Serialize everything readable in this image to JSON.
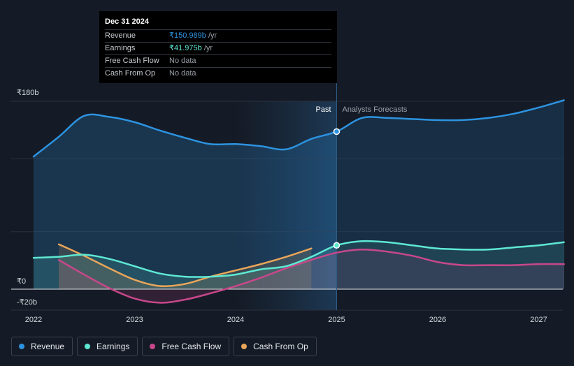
{
  "tooltip": {
    "date": "Dec 31 2024",
    "rows": [
      {
        "label": "Revenue",
        "value": "₹150.989b",
        "unit": " /yr",
        "color": "#2d93e0"
      },
      {
        "label": "Earnings",
        "value": "₹41.975b",
        "unit": " /yr",
        "color": "#5ee8d3"
      },
      {
        "label": "Free Cash Flow",
        "value": "No data",
        "unit": "",
        "color": ""
      },
      {
        "label": "Cash From Op",
        "value": "No data",
        "unit": "",
        "color": ""
      }
    ]
  },
  "labels": {
    "past": "Past",
    "forecast": "Analysts Forecasts"
  },
  "legend": [
    {
      "label": "Revenue",
      "color": "#2d93e0"
    },
    {
      "label": "Earnings",
      "color": "#5ee8d3"
    },
    {
      "label": "Free Cash Flow",
      "color": "#c8478a"
    },
    {
      "label": "Cash From Op",
      "color": "#e8a55a"
    }
  ],
  "chart_data": {
    "type": "line",
    "title": "",
    "xlabel": "",
    "ylabel": "",
    "x_ticks": [
      "2022",
      "2023",
      "2024",
      "2025",
      "2026",
      "2027"
    ],
    "y_ticks": [
      "₹180b",
      "₹0",
      "-₹20b"
    ],
    "ylim": [
      -20,
      180
    ],
    "xlim": [
      2022,
      2027.25
    ],
    "divider_x": 2025.0,
    "series": [
      {
        "name": "Revenue",
        "color": "#2d93e0",
        "x": [
          2022.0,
          2022.25,
          2022.5,
          2022.75,
          2023.0,
          2023.25,
          2023.5,
          2023.75,
          2024.0,
          2024.25,
          2024.5,
          2024.75,
          2025.0,
          2025.25,
          2025.5,
          2025.75,
          2026.0,
          2026.25,
          2026.5,
          2026.75,
          2027.0,
          2027.25
        ],
        "y": [
          127,
          146,
          166,
          165,
          160,
          152,
          145,
          139,
          139,
          137,
          134,
          144,
          151,
          164,
          164,
          163,
          162,
          162,
          164,
          168,
          174,
          181
        ]
      },
      {
        "name": "Earnings",
        "color": "#5ee8d3",
        "x": [
          2022.0,
          2022.25,
          2022.5,
          2022.75,
          2023.0,
          2023.25,
          2023.5,
          2023.75,
          2024.0,
          2024.25,
          2024.5,
          2024.75,
          2025.0,
          2025.25,
          2025.5,
          2025.75,
          2026.0,
          2026.25,
          2026.5,
          2026.75,
          2027.0,
          2027.25
        ],
        "y": [
          30,
          31,
          33,
          29,
          22,
          15,
          12,
          12,
          14,
          19,
          22,
          31,
          42,
          46,
          45,
          42,
          39,
          38,
          38,
          40,
          42,
          45
        ]
      },
      {
        "name": "Free Cash Flow",
        "color": "#c8478a",
        "x": [
          2022.25,
          2022.5,
          2022.75,
          2023.0,
          2023.25,
          2023.5,
          2023.75,
          2024.0,
          2024.25,
          2024.5,
          2024.75,
          2025.0,
          2025.25,
          2025.5,
          2025.75,
          2026.0,
          2026.25,
          2026.5,
          2026.75,
          2027.0,
          2027.25
        ],
        "y": [
          28,
          14,
          1,
          -9,
          -13,
          -10,
          -4,
          3,
          11,
          20,
          28,
          35,
          38,
          36,
          32,
          26,
          23,
          23,
          23,
          24,
          24
        ]
      },
      {
        "name": "Cash From Op",
        "color": "#e8a55a",
        "x": [
          2022.25,
          2022.5,
          2022.75,
          2023.0,
          2023.25,
          2023.5,
          2023.75,
          2024.0,
          2024.25,
          2024.5,
          2024.75
        ],
        "y": [
          43,
          32,
          20,
          9,
          3,
          5,
          12,
          18,
          24,
          31,
          39
        ]
      }
    ],
    "highlight_points": [
      {
        "series": "Revenue",
        "x": 2025.0,
        "y": 151
      },
      {
        "series": "Earnings",
        "x": 2025.0,
        "y": 42
      }
    ]
  }
}
